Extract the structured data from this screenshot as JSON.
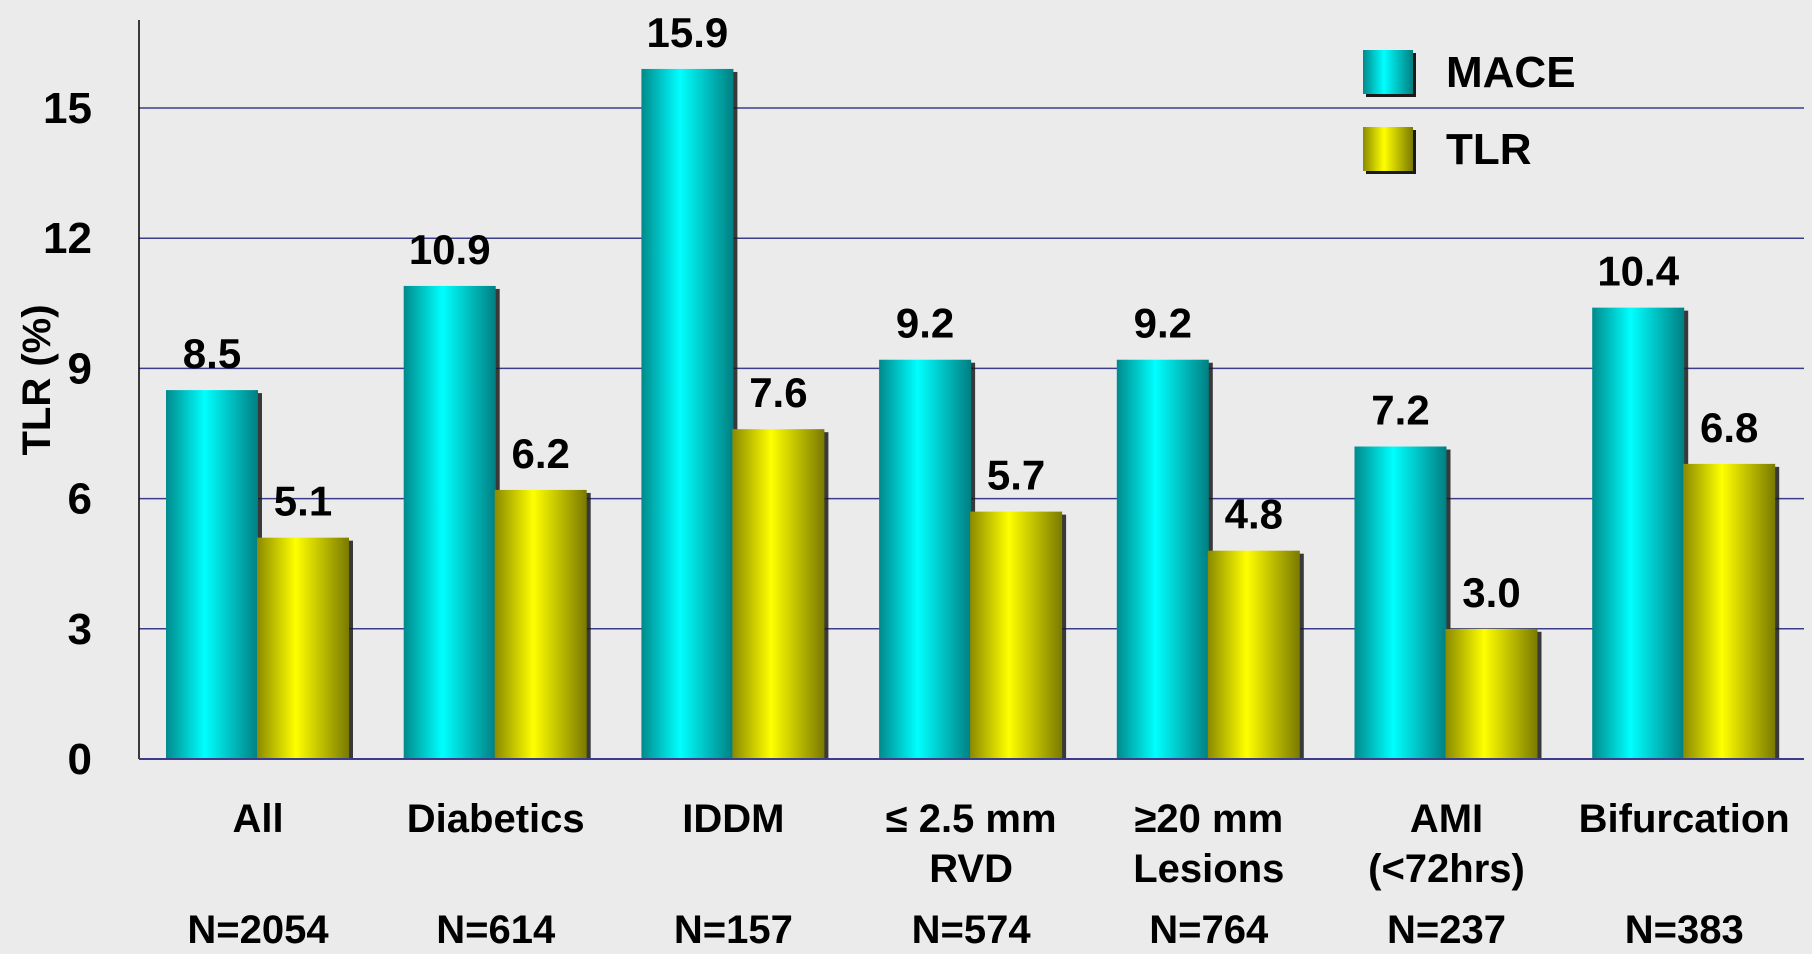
{
  "chart_data": {
    "type": "bar",
    "ylabel": "TLR (%)",
    "ylim": [
      0,
      17
    ],
    "yticks": [
      "0",
      "3",
      "6",
      "9",
      "12",
      "15"
    ],
    "grid": true,
    "legend_position": "top-right",
    "categories": [
      {
        "lines": [
          "All"
        ],
        "n": "N=2054"
      },
      {
        "lines": [
          "Diabetics"
        ],
        "n": "N=614"
      },
      {
        "lines": [
          "IDDM"
        ],
        "n": "N=157"
      },
      {
        "lines": [
          "≤ 2.5 mm",
          "RVD"
        ],
        "n": "N=574"
      },
      {
        "lines": [
          "≥20 mm",
          "Lesions"
        ],
        "n": "N=764"
      },
      {
        "lines": [
          "AMI",
          "(<72hrs)"
        ],
        "n": "N=237"
      },
      {
        "lines": [
          "Bifurcation"
        ],
        "n": "N=383"
      }
    ],
    "series": [
      {
        "name": "MACE",
        "color": "#00c8cc",
        "values": [
          8.5,
          10.9,
          15.9,
          9.2,
          9.2,
          7.2,
          10.4
        ],
        "labels": [
          "8.5",
          "10.9",
          "15.9",
          "9.2",
          "9.2",
          "7.2",
          "10.4"
        ]
      },
      {
        "name": "TLR",
        "color": "#e8e800",
        "values": [
          5.1,
          6.2,
          7.6,
          5.7,
          4.8,
          3.0,
          6.8
        ],
        "labels": [
          "5.1",
          "6.2",
          "7.6",
          "5.7",
          "4.8",
          "3.0",
          "6.8"
        ]
      }
    ],
    "colors": {
      "background": "#ebebeb",
      "gridline": "#3c3c8c",
      "axis": "#000000"
    }
  }
}
